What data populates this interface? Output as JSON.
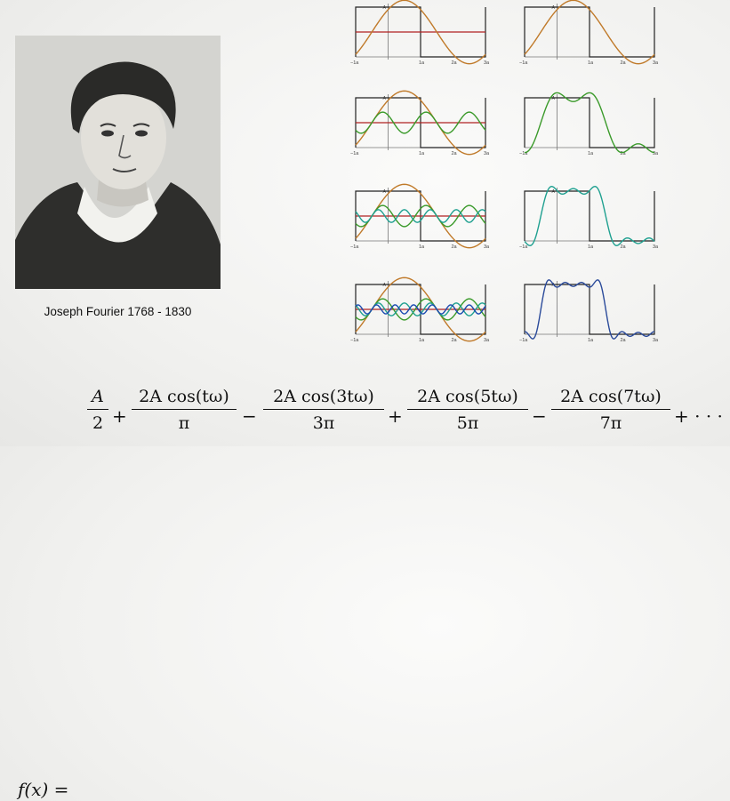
{
  "portrait": {
    "caption": "Joseph Fourier 1768 - 1830"
  },
  "plot_labels": {
    "a": "A",
    "x0": "−1a",
    "x1": "1a",
    "x2": "2a",
    "x3": "3a"
  },
  "colors": {
    "square": "#222222",
    "constant": "#b02222",
    "h1": "#c07a2a",
    "h3": "#3a9a2a",
    "h5": "#1fa090",
    "h7": "#1a4ab0",
    "sum": "#2a4a9a"
  },
  "formula": {
    "lhs": "f(x) =",
    "t0": {
      "num": "A",
      "den": "2"
    },
    "t1": {
      "sign": "+",
      "num": "2A cos(tω)",
      "den": "π"
    },
    "t2": {
      "sign": "−",
      "num": "2A cos(3tω)",
      "den": "3π"
    },
    "t3": {
      "sign": "+",
      "num": "2A cos(5tω)",
      "den": "5π"
    },
    "t4": {
      "sign": "−",
      "num": "2A cos(7tω)",
      "den": "7π"
    },
    "tail": "+ · · ·"
  }
}
